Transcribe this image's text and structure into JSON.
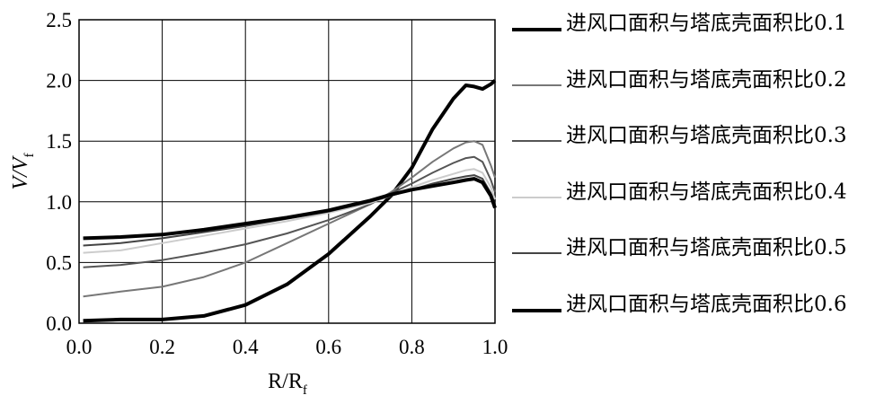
{
  "chart_data": {
    "type": "line",
    "xlabel_main": "R/R",
    "xlabel_sub": "f",
    "ylabel_main": "V/V",
    "ylabel_sub": "f",
    "xlim": [
      0,
      1.0
    ],
    "ylim": [
      0,
      2.5
    ],
    "x_ticks": [
      "0.0",
      "0.2",
      "0.4",
      "0.6",
      "0.8",
      "1.0"
    ],
    "y_ticks": [
      "0.0",
      "0.5",
      "1.0",
      "1.5",
      "2.0",
      "2.5"
    ],
    "grid": true,
    "legend_position": "right",
    "x": [
      0.01,
      0.1,
      0.2,
      0.3,
      0.4,
      0.5,
      0.6,
      0.7,
      0.75,
      0.8,
      0.85,
      0.9,
      0.93,
      0.95,
      0.97,
      0.99,
      1.0
    ],
    "series": [
      {
        "name": "进风口面积与塔底壳面积比0.1",
        "color": "#000000",
        "width": 4,
        "values": [
          0.02,
          0.03,
          0.03,
          0.06,
          0.15,
          0.32,
          0.57,
          0.88,
          1.05,
          1.28,
          1.6,
          1.85,
          1.96,
          1.95,
          1.93,
          1.97,
          2.0
        ]
      },
      {
        "name": "进风口面积与塔底壳面积比0.2",
        "color": "#777777",
        "width": 2,
        "values": [
          0.22,
          0.26,
          0.3,
          0.38,
          0.5,
          0.66,
          0.82,
          0.98,
          1.08,
          1.2,
          1.33,
          1.44,
          1.49,
          1.5,
          1.47,
          1.3,
          1.2
        ]
      },
      {
        "name": "进风口面积与塔底壳面积比0.3",
        "color": "#555555",
        "width": 2,
        "values": [
          0.46,
          0.48,
          0.52,
          0.58,
          0.65,
          0.74,
          0.85,
          0.98,
          1.07,
          1.15,
          1.24,
          1.32,
          1.36,
          1.37,
          1.33,
          1.18,
          1.08
        ]
      },
      {
        "name": "进风口面积与塔底壳面积比0.4",
        "color": "#cccccc",
        "width": 2,
        "values": [
          0.58,
          0.6,
          0.66,
          0.72,
          0.78,
          0.84,
          0.91,
          0.99,
          1.05,
          1.12,
          1.18,
          1.23,
          1.26,
          1.27,
          1.24,
          1.12,
          1.02
        ]
      },
      {
        "name": "进风口面积与塔底壳面积比0.5",
        "color": "#444444",
        "width": 2,
        "values": [
          0.64,
          0.66,
          0.7,
          0.75,
          0.8,
          0.86,
          0.92,
          1.0,
          1.05,
          1.1,
          1.15,
          1.19,
          1.21,
          1.22,
          1.19,
          1.07,
          0.98
        ]
      },
      {
        "name": "进风口面积与塔底壳面积比0.6",
        "color": "#000000",
        "width": 4,
        "values": [
          0.7,
          0.71,
          0.73,
          0.77,
          0.82,
          0.87,
          0.93,
          1.01,
          1.06,
          1.1,
          1.13,
          1.16,
          1.18,
          1.19,
          1.16,
          1.05,
          0.95
        ]
      }
    ]
  }
}
